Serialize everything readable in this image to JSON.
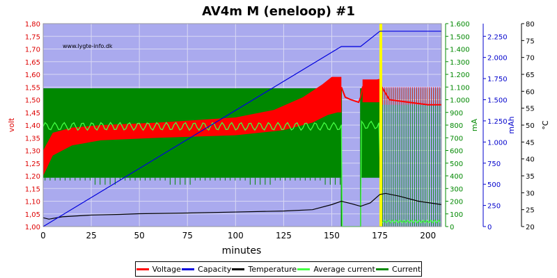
{
  "chart_data": {
    "type": "line",
    "title": "AV4m M (eneloop) #1",
    "watermark": "www.lygte-info.dk",
    "xlabel": "minutes",
    "xlim": [
      0,
      207
    ],
    "x_ticks": [
      0,
      25,
      50,
      75,
      100,
      125,
      150,
      175,
      200
    ],
    "background_color": "#aaaaee",
    "grid": true,
    "legend_position": "bottom",
    "axes": {
      "volt": {
        "label": "volt",
        "color": "#dd0000",
        "side": "left",
        "range": [
          1.0,
          1.8
        ],
        "ticks": [
          "1,00",
          "1,05",
          "1,10",
          "1,15",
          "1,20",
          "1,25",
          "1,30",
          "1,35",
          "1,40",
          "1,45",
          "1,50",
          "1,55",
          "1,60",
          "1,65",
          "1,70",
          "1,75",
          "1,80"
        ]
      },
      "mA": {
        "label": "mA",
        "color": "#008800",
        "side": "right",
        "range": [
          0,
          1600
        ],
        "ticks": [
          "0",
          "100",
          "200",
          "300",
          "400",
          "500",
          "600",
          "700",
          "800",
          "900",
          "1.000",
          "1.100",
          "1.200",
          "1.300",
          "1.400",
          "1.500",
          "1.600"
        ]
      },
      "mAh": {
        "label": "mAh",
        "color": "#0000cc",
        "side": "right",
        "range": [
          0,
          2400
        ],
        "ticks": [
          "0",
          "250",
          "500",
          "750",
          "1.000",
          "1.250",
          "1.500",
          "1.750",
          "2.000",
          "2.250"
        ]
      },
      "temp": {
        "label": "°C",
        "color": "#000000",
        "side": "right",
        "range": [
          20,
          80
        ],
        "ticks": [
          "20",
          "25",
          "30",
          "35",
          "40",
          "45",
          "50",
          "55",
          "60",
          "65",
          "70",
          "75",
          "80"
        ]
      }
    },
    "series": [
      {
        "name": "Voltage",
        "color": "#ff0000",
        "axis": "volt",
        "band_low": [
          [
            0,
            1.2
          ],
          [
            5,
            1.28
          ],
          [
            15,
            1.32
          ],
          [
            30,
            1.34
          ],
          [
            60,
            1.35
          ],
          [
            100,
            1.36
          ],
          [
            125,
            1.38
          ],
          [
            140,
            1.41
          ],
          [
            148,
            1.44
          ],
          [
            153,
            1.45
          ],
          [
            155,
            1.45
          ]
        ],
        "band_high": [
          [
            0,
            1.3
          ],
          [
            5,
            1.37
          ],
          [
            15,
            1.39
          ],
          [
            30,
            1.4
          ],
          [
            60,
            1.41
          ],
          [
            100,
            1.43
          ],
          [
            120,
            1.46
          ],
          [
            135,
            1.51
          ],
          [
            145,
            1.56
          ],
          [
            150,
            1.59
          ],
          [
            155,
            1.59
          ]
        ],
        "tail": [
          [
            155,
            1.55
          ],
          [
            157,
            1.51
          ],
          [
            160,
            1.5
          ],
          [
            164,
            1.49
          ],
          [
            165,
            1.51
          ],
          [
            166,
            1.55
          ],
          [
            170,
            1.57
          ],
          [
            175,
            1.58
          ],
          [
            176,
            1.55
          ],
          [
            180,
            1.5
          ],
          [
            190,
            1.49
          ],
          [
            200,
            1.48
          ],
          [
            207,
            1.48
          ]
        ]
      },
      {
        "name": "Capacity",
        "color": "#0000dd",
        "axis": "mAh",
        "points": [
          [
            0,
            0
          ],
          [
            155,
            2130
          ],
          [
            165,
            2130
          ],
          [
            175,
            2310
          ],
          [
            207,
            2310
          ]
        ]
      },
      {
        "name": "Temperature",
        "color": "#000000",
        "axis": "temp",
        "points": [
          [
            0,
            22.6
          ],
          [
            3,
            22.2
          ],
          [
            10,
            22.9
          ],
          [
            25,
            23.4
          ],
          [
            40,
            23.6
          ],
          [
            50,
            23.8
          ],
          [
            75,
            24.0
          ],
          [
            100,
            24.3
          ],
          [
            125,
            24.6
          ],
          [
            140,
            25.0
          ],
          [
            150,
            26.5
          ],
          [
            155,
            27.5
          ],
          [
            160,
            26.8
          ],
          [
            165,
            26.0
          ],
          [
            170,
            27.0
          ],
          [
            175,
            29.5
          ],
          [
            178,
            29.8
          ],
          [
            185,
            29.0
          ],
          [
            195,
            27.5
          ],
          [
            207,
            26.5
          ]
        ]
      },
      {
        "name": "Average current",
        "color": "#44ff44",
        "axis": "mA",
        "points": [
          [
            0,
            790
          ],
          [
            155,
            790
          ],
          [
            155.5,
            0
          ],
          [
            165,
            0
          ],
          [
            165.5,
            800
          ],
          [
            175,
            800
          ],
          [
            176,
            30
          ],
          [
            207,
            30
          ]
        ],
        "ripple": 30
      },
      {
        "name": "Current",
        "color": "#008800",
        "axis": "mA",
        "high": 1090,
        "low": 385,
        "points": [
          [
            0,
            1090
          ],
          [
            155,
            1090
          ],
          [
            155,
            0
          ],
          [
            165,
            0
          ],
          [
            165,
            1090
          ],
          [
            175,
            1090
          ],
          [
            176,
            0
          ],
          [
            207,
            0
          ]
        ]
      }
    ],
    "marker": {
      "x": 175.5,
      "color": "#ffff00"
    }
  }
}
